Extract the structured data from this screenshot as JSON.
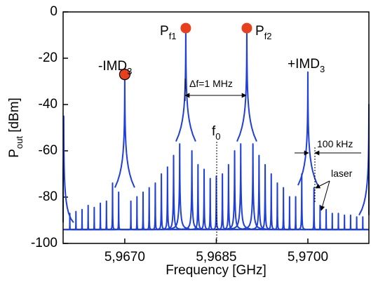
{
  "chart_data": {
    "type": "spectrum",
    "x_label": "Frequency [GHz]",
    "y_label": {
      "main": "P",
      "sub": "out",
      "rest": " [dBm]"
    },
    "xlim": [
      5.96599,
      5.971
    ],
    "ylim": [
      -100,
      0
    ],
    "xticks": [
      {
        "value": 5.967,
        "label": "5,9670"
      },
      {
        "value": 5.9685,
        "label": "5,9685"
      },
      {
        "value": 5.97,
        "label": "5,9700"
      }
    ],
    "yticks": [
      0,
      -20,
      -40,
      -60,
      -80,
      -100
    ],
    "floor": -94,
    "color": "#1f3fd6",
    "x": [
      5.966,
      5.9661,
      5.9662,
      5.9663,
      5.9664,
      5.9665,
      5.9666,
      5.9667,
      5.9668,
      5.9669,
      5.967,
      5.9671,
      5.9672,
      5.9673,
      5.9674,
      5.9675,
      5.9676,
      5.9677,
      5.9678,
      5.9679,
      5.968,
      5.9681,
      5.9682,
      5.9683,
      5.9684,
      5.9685,
      5.9686,
      5.9687,
      5.9688,
      5.9689,
      5.969,
      5.9691,
      5.9692,
      5.9693,
      5.9694,
      5.9695,
      5.9696,
      5.9697,
      5.9698,
      5.9699,
      5.97,
      5.9701,
      5.9702,
      5.9703,
      5.9704,
      5.9705,
      5.9706,
      5.9707,
      5.9708,
      5.9709,
      5.971
    ],
    "values": [
      -45,
      -88,
      -87,
      -86,
      -84,
      -85,
      -83,
      -82,
      -74,
      -78,
      -27,
      -82,
      -80,
      -78,
      -76,
      -74,
      -70,
      -67,
      -62,
      -57,
      -7,
      -60,
      -66,
      -68,
      -72,
      -71,
      -70,
      -66,
      -60,
      -57,
      -7,
      -57,
      -62,
      -66,
      -70,
      -74,
      -76,
      -80,
      -80,
      -70,
      -26,
      -76,
      -84,
      -86,
      -88,
      -88,
      -89,
      -89,
      -90,
      -90,
      -40
    ],
    "markers": {
      "color": "#e8401c",
      "x": [
        5.967,
        5.968,
        5.969
      ],
      "values": [
        -27,
        -7,
        -7
      ]
    },
    "annotations": {
      "minus_imd": {
        "main": "-IMD",
        "sub": "3"
      },
      "plus_imd": {
        "main": "+IMD",
        "sub": "3"
      },
      "pf1": {
        "main": "P",
        "sub": "f1"
      },
      "pf2": {
        "main": "P",
        "sub": "f2"
      },
      "delta_f": "Δf=1 MHz",
      "f0": {
        "main": "f",
        "sub": "0"
      },
      "khz": "100 kHz",
      "laser": "laser"
    }
  }
}
